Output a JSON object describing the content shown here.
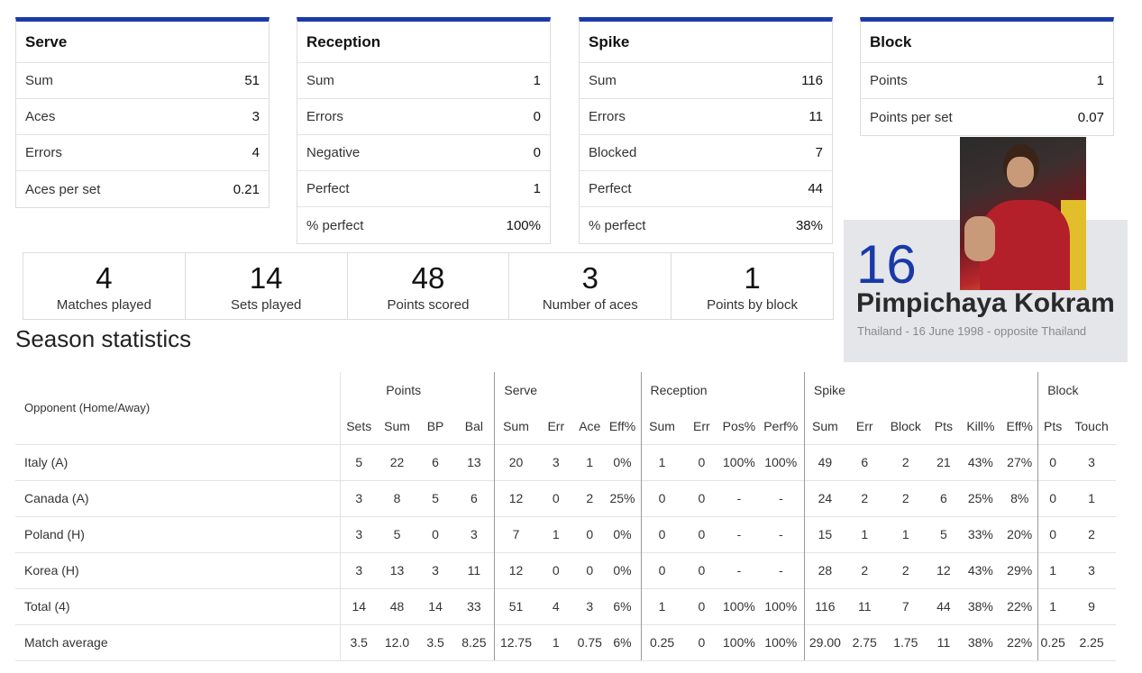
{
  "cards": {
    "serve": {
      "title": "Serve",
      "rows": [
        {
          "label": "Sum",
          "value": "51"
        },
        {
          "label": "Aces",
          "value": "3"
        },
        {
          "label": "Errors",
          "value": "4"
        },
        {
          "label": "Aces per set",
          "value": "0.21"
        }
      ]
    },
    "reception": {
      "title": "Reception",
      "rows": [
        {
          "label": "Sum",
          "value": "1"
        },
        {
          "label": "Errors",
          "value": "0"
        },
        {
          "label": "Negative",
          "value": "0"
        },
        {
          "label": "Perfect",
          "value": "1"
        },
        {
          "label": "% perfect",
          "value": "100%"
        }
      ]
    },
    "spike": {
      "title": "Spike",
      "rows": [
        {
          "label": "Sum",
          "value": "116"
        },
        {
          "label": "Errors",
          "value": "11"
        },
        {
          "label": "Blocked",
          "value": "7"
        },
        {
          "label": "Perfect",
          "value": "44"
        },
        {
          "label": "% perfect",
          "value": "38%"
        }
      ]
    },
    "block": {
      "title": "Block",
      "rows": [
        {
          "label": "Points",
          "value": "1"
        },
        {
          "label": "Points per set",
          "value": "0.07"
        }
      ]
    }
  },
  "summary": [
    {
      "value": "4",
      "label": "Matches played"
    },
    {
      "value": "14",
      "label": "Sets played"
    },
    {
      "value": "48",
      "label": "Points scored"
    },
    {
      "value": "3",
      "label": "Number of aces"
    },
    {
      "value": "1",
      "label": "Points by block"
    }
  ],
  "player": {
    "number": "16",
    "name": "Pimpichaya Kokram",
    "info": "Thailand - 16 June 1998 - opposite Thailand"
  },
  "season": {
    "title": "Season statistics",
    "opponent_header": "Opponent (Home/Away)",
    "groups": {
      "points": "Points",
      "serve": "Serve",
      "reception": "Reception",
      "spike": "Spike",
      "block": "Block"
    },
    "columns": [
      "Sets",
      "Sum",
      "BP",
      "Bal",
      "Sum",
      "Err",
      "Ace",
      "Eff%",
      "Sum",
      "Err",
      "Pos%",
      "Perf%",
      "Sum",
      "Err",
      "Block",
      "Pts",
      "Kill%",
      "Eff%",
      "Pts",
      "Touch"
    ],
    "rows": [
      {
        "opponent": "Italy (A)",
        "values": [
          "5",
          "22",
          "6",
          "13",
          "20",
          "3",
          "1",
          "0%",
          "1",
          "0",
          "100%",
          "100%",
          "49",
          "6",
          "2",
          "21",
          "43%",
          "27%",
          "0",
          "3"
        ]
      },
      {
        "opponent": "Canada (A)",
        "values": [
          "3",
          "8",
          "5",
          "6",
          "12",
          "0",
          "2",
          "25%",
          "0",
          "0",
          "-",
          "-",
          "24",
          "2",
          "2",
          "6",
          "25%",
          "8%",
          "0",
          "1"
        ]
      },
      {
        "opponent": "Poland (H)",
        "values": [
          "3",
          "5",
          "0",
          "3",
          "7",
          "1",
          "0",
          "0%",
          "0",
          "0",
          "-",
          "-",
          "15",
          "1",
          "1",
          "5",
          "33%",
          "20%",
          "0",
          "2"
        ]
      },
      {
        "opponent": "Korea (H)",
        "values": [
          "3",
          "13",
          "3",
          "11",
          "12",
          "0",
          "0",
          "0%",
          "0",
          "0",
          "-",
          "-",
          "28",
          "2",
          "2",
          "12",
          "43%",
          "29%",
          "1",
          "3"
        ]
      },
      {
        "opponent": "Total (4)",
        "values": [
          "14",
          "48",
          "14",
          "33",
          "51",
          "4",
          "3",
          "6%",
          "1",
          "0",
          "100%",
          "100%",
          "116",
          "11",
          "7",
          "44",
          "38%",
          "22%",
          "1",
          "9"
        ]
      },
      {
        "opponent": "Match average",
        "values": [
          "3.5",
          "12.0",
          "3.5",
          "8.25",
          "12.75",
          "1",
          "0.75",
          "6%",
          "0.25",
          "0",
          "100%",
          "100%",
          "29.00",
          "2.75",
          "1.75",
          "11",
          "38%",
          "22%",
          "0.25",
          "2.25"
        ]
      }
    ]
  }
}
